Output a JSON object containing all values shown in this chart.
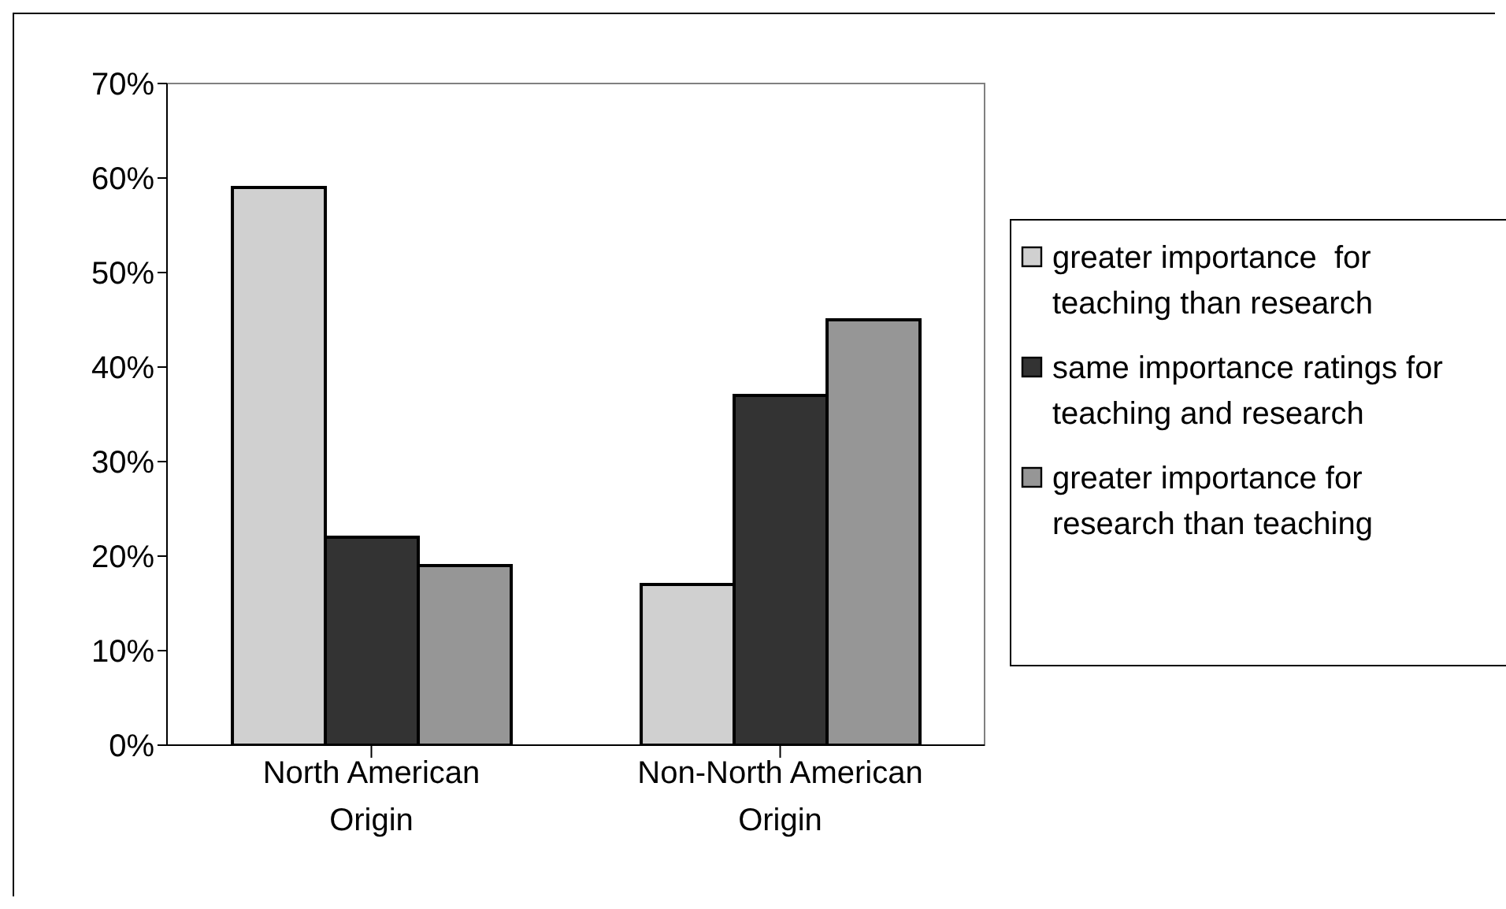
{
  "chart_data": {
    "type": "bar",
    "categories": [
      "North American Origin",
      "Non-North American Origin"
    ],
    "series": [
      {
        "name": "greater importance  for teaching than research",
        "color": "#d0d0d0",
        "values": [
          59,
          17
        ]
      },
      {
        "name": "same importance ratings for teaching and research",
        "color": "#333333",
        "values": [
          22,
          37
        ]
      },
      {
        "name": "greater importance for research than teaching",
        "color": "#969696",
        "values": [
          19,
          45
        ]
      }
    ],
    "ylim": [
      0,
      70
    ],
    "yticks": [
      {
        "value": 0,
        "label": "0%"
      },
      {
        "value": 10,
        "label": "10%"
      },
      {
        "value": 20,
        "label": "20%"
      },
      {
        "value": 30,
        "label": "30%"
      },
      {
        "value": 40,
        "label": "40%"
      },
      {
        "value": 50,
        "label": "50%"
      },
      {
        "value": 60,
        "label": "60%"
      },
      {
        "value": 70,
        "label": "70%"
      }
    ],
    "grid": false,
    "legend": "right"
  }
}
